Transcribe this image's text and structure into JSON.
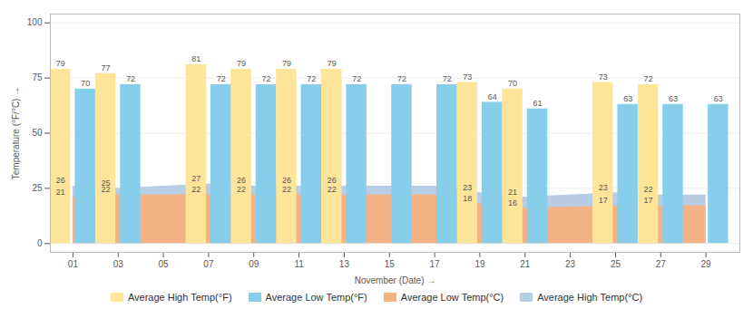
{
  "chart_data": {
    "type": "bar",
    "xlabel": "November (Date)",
    "ylabel": "Temperature (°F/°C)",
    "xlim": [
      0,
      30.5
    ],
    "xticks": [
      {
        "value": 1,
        "label": "01"
      },
      {
        "value": 3,
        "label": "03"
      },
      {
        "value": 5,
        "label": "05"
      },
      {
        "value": 7,
        "label": "07"
      },
      {
        "value": 9,
        "label": "09"
      },
      {
        "value": 11,
        "label": "11"
      },
      {
        "value": 13,
        "label": "13"
      },
      {
        "value": 15,
        "label": "15"
      },
      {
        "value": 17,
        "label": "17"
      },
      {
        "value": 19,
        "label": "19"
      },
      {
        "value": 21,
        "label": "21"
      },
      {
        "value": 23,
        "label": "23"
      },
      {
        "value": 25,
        "label": "25"
      },
      {
        "value": 27,
        "label": "27"
      },
      {
        "value": 29,
        "label": "29"
      }
    ],
    "ylim": [
      -4,
      104
    ],
    "yticks": [
      0,
      25,
      50,
      75,
      100
    ],
    "grid": true,
    "legend": "bottom",
    "data_labels": true,
    "series": [
      {
        "name": "Average High Temp(°F)",
        "type": "bar",
        "color": "#FFE599",
        "x": [
          1,
          3,
          7,
          9,
          11,
          13,
          19,
          21,
          25,
          27
        ],
        "values": [
          79,
          77,
          81,
          79,
          79,
          79,
          73,
          70,
          73,
          72
        ]
      },
      {
        "name": "Average Low Temp(°F)",
        "type": "bar",
        "color": "#87CEEB",
        "x": [
          1,
          3,
          7,
          9,
          11,
          13,
          15,
          17,
          19,
          21,
          25,
          27,
          29
        ],
        "values": [
          70,
          72,
          72,
          72,
          72,
          72,
          72,
          72,
          64,
          61,
          63,
          63,
          63
        ]
      },
      {
        "name": "Average Low Temp(°C)",
        "type": "area",
        "color": "#F4B183",
        "x": [
          1,
          3,
          7,
          9,
          11,
          13,
          15,
          17,
          19,
          21,
          25,
          27,
          29
        ],
        "values": [
          21,
          22,
          22,
          22,
          22,
          22,
          22,
          22,
          18,
          16,
          17,
          17,
          17
        ],
        "value_labels": [
          "21",
          "22",
          "22",
          "22",
          "22",
          "22",
          null,
          null,
          "18",
          "16",
          "17",
          "17",
          null
        ]
      },
      {
        "name": "Average High Temp(°C)",
        "type": "area",
        "color": "#B8CCE4",
        "x": [
          1,
          3,
          7,
          9,
          11,
          13,
          15,
          17,
          19,
          21,
          25,
          27,
          29
        ],
        "values": [
          26,
          25,
          27,
          26,
          26,
          26,
          26,
          26,
          23,
          21,
          23,
          22,
          22
        ],
        "value_labels": [
          "26",
          "25",
          "27",
          "26",
          "26",
          "26",
          null,
          null,
          "23",
          "21",
          "23",
          "22",
          null
        ]
      }
    ]
  }
}
